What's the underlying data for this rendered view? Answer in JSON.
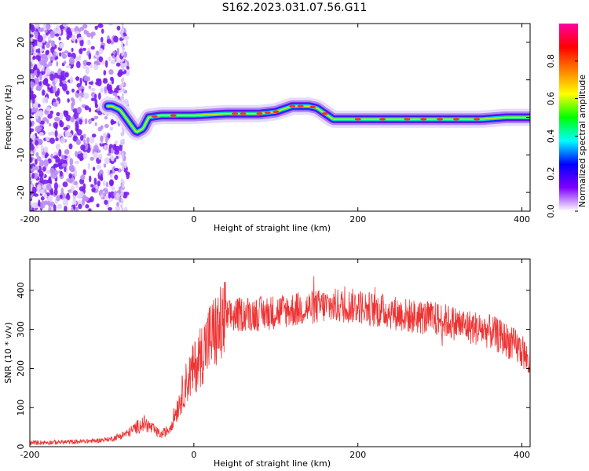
{
  "title": "S162.2023.031.07.56.G11",
  "chart_data": [
    {
      "type": "heatmap",
      "xlabel": "Height of straight line (km)",
      "ylabel": "Frequency (Hz)",
      "xlim": [
        -200,
        410
      ],
      "ylim": [
        -25,
        25
      ],
      "xticks": [
        -200,
        0,
        200,
        400
      ],
      "yticks": [
        -20,
        -10,
        0,
        10,
        20
      ],
      "colorbar": {
        "label": "Normalized spectral amplitude",
        "range": [
          0,
          1
        ],
        "ticks": [
          "0.0",
          "0.2",
          "0.4",
          "0.6",
          "0.8"
        ],
        "colors": [
          "#ffffff",
          "#8000ff",
          "#0000ff",
          "#00ffff",
          "#00ff00",
          "#ffff00",
          "#ff8000",
          "#ff0000",
          "#ff00a0"
        ]
      },
      "ridge": {
        "x": [
          -100,
          -90,
          -80,
          -70,
          -62,
          -55,
          -40,
          -20,
          0,
          40,
          60,
          80,
          100,
          120,
          140,
          150,
          160,
          170,
          200,
          250,
          300,
          350,
          380,
          410
        ],
        "y": [
          3,
          2,
          -1,
          -4,
          -3,
          0,
          0.5,
          0.5,
          0.5,
          1,
          1,
          1,
          1.5,
          3,
          3,
          2.5,
          1,
          -0.5,
          -0.5,
          -0.5,
          -0.5,
          -0.5,
          0,
          0
        ]
      }
    },
    {
      "type": "line",
      "xlabel": "Height of straight line (km)",
      "ylabel": "SNR (10 * v/v)",
      "xlim": [
        -200,
        410
      ],
      "ylim": [
        0,
        480
      ],
      "xticks": [
        -200,
        0,
        200,
        400
      ],
      "yticks": [
        0,
        100,
        200,
        300,
        400
      ],
      "series": [
        {
          "color": "#ee3333",
          "x": [
            -200,
            -150,
            -120,
            -100,
            -80,
            -70,
            -60,
            -50,
            -40,
            -30,
            -20,
            -10,
            0,
            10,
            20,
            30,
            40,
            60,
            80,
            100,
            120,
            140,
            160,
            180,
            200,
            220,
            240,
            260,
            280,
            300,
            320,
            340,
            360,
            380,
            400,
            410
          ],
          "y": [
            10,
            12,
            15,
            20,
            35,
            50,
            60,
            45,
            30,
            45,
            100,
            160,
            200,
            240,
            280,
            300,
            330,
            340,
            340,
            345,
            350,
            355,
            360,
            360,
            360,
            350,
            345,
            335,
            330,
            325,
            315,
            305,
            295,
            275,
            245,
            210
          ]
        }
      ]
    }
  ]
}
